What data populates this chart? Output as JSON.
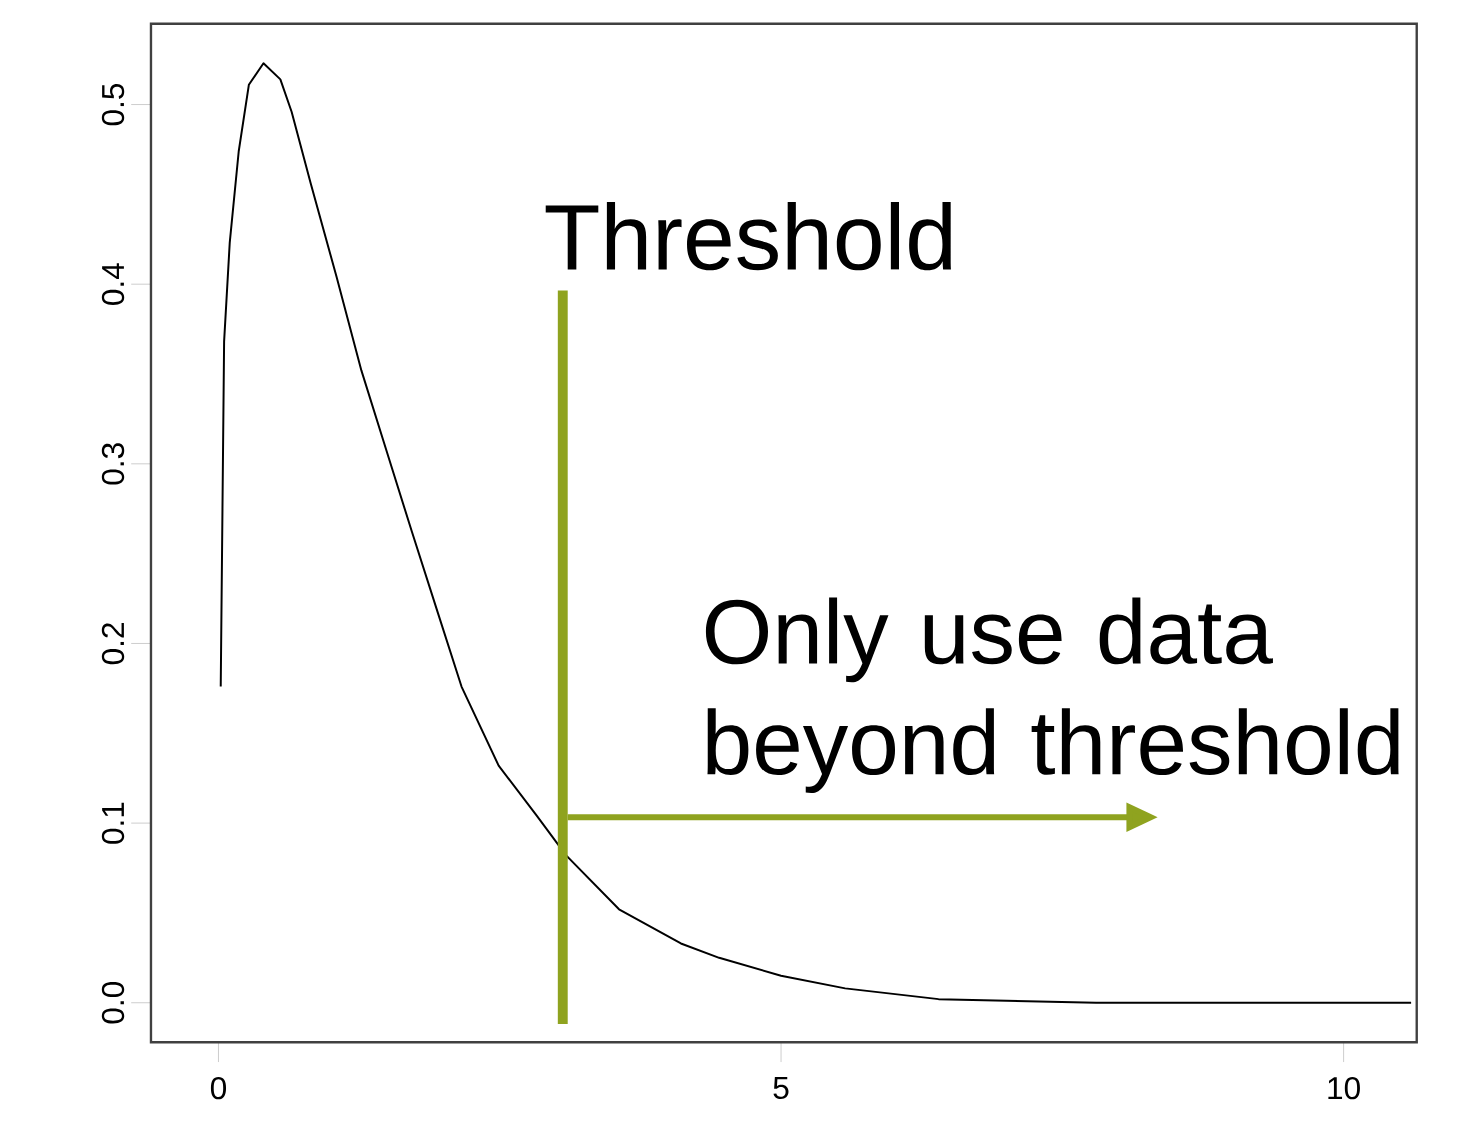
{
  "chart_data": {
    "type": "line",
    "x": [
      0.02,
      0.05,
      0.1,
      0.18,
      0.27,
      0.4,
      0.55,
      0.65,
      0.82,
      1.05,
      1.27,
      1.49,
      1.72,
      1.95,
      2.16,
      2.49,
      2.83,
      3.09,
      3.56,
      4.11,
      4.45,
      5.0,
      5.57,
      6.4,
      7.8,
      10.6
    ],
    "series": [
      {
        "color": "#000000",
        "values": [
          0.176,
          0.368,
          0.423,
          0.474,
          0.511,
          0.523,
          0.514,
          0.496,
          0.456,
          0.404,
          0.352,
          0.308,
          0.262,
          0.217,
          0.176,
          0.132,
          0.104,
          0.082,
          0.052,
          0.033,
          0.025,
          0.015,
          0.008,
          0.002,
          0.0,
          0.0
        ]
      }
    ],
    "xlim": [
      -0.6,
      10.65
    ],
    "ylim": [
      -0.022,
      0.545
    ],
    "xticks": [
      0,
      5,
      10
    ],
    "yticks": [
      {
        "value": 0,
        "label": "0.0"
      },
      {
        "value": 0.1,
        "label": "0.1"
      },
      {
        "value": 0.2,
        "label": "0.2"
      },
      {
        "value": 0.3,
        "label": "0.3"
      },
      {
        "value": 0.4,
        "label": "0.4"
      },
      {
        "value": 0.5,
        "label": "0.5"
      }
    ],
    "ref_lines": [
      {
        "axis": "x",
        "value": 3.06,
        "label": "Threshold",
        "color": "#8fa31f"
      }
    ],
    "annotations": [
      "Only use data beyond threshold"
    ],
    "grid": false,
    "marker": "none",
    "line_style": "solid"
  }
}
